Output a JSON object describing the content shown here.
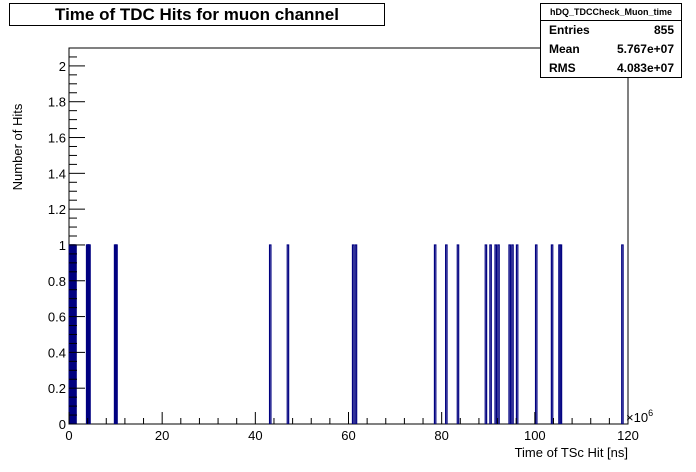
{
  "chart_data": {
    "type": "bar",
    "title": "Time of TDC Hits for muon channel",
    "xlabel": "Time of TSc Hit [ns]",
    "ylabel": "Number of Hits",
    "x_multiplier_label": "×10",
    "x_multiplier_exp": "6",
    "xlim": [
      0,
      120
    ],
    "ylim": [
      0,
      2.1
    ],
    "x_ticks": [
      0,
      20,
      40,
      60,
      80,
      100,
      120
    ],
    "x_tick_labels": [
      "0",
      "20",
      "40",
      "60",
      "80",
      "100",
      "120"
    ],
    "y_ticks": [
      0,
      0.2,
      0.4,
      0.6,
      0.8,
      1,
      1.2,
      1.4,
      1.6,
      1.8,
      2
    ],
    "y_tick_labels": [
      "0",
      "0.2",
      "0.4",
      "0.6",
      "0.8",
      "1",
      "1.2",
      "1.4",
      "1.6",
      "1.8",
      "2"
    ],
    "bar_color": "#000080",
    "bins_x": [
      0.2,
      0.35,
      0.5,
      0.65,
      0.8,
      0.95,
      1.1,
      1.25,
      1.4,
      3.9,
      4.0,
      4.1,
      4.2,
      4.3,
      4.4,
      9.9,
      10.05,
      10.2,
      43.2,
      47.0,
      61.0,
      61.6,
      78.6,
      81.0,
      83.5,
      89.5,
      90.5,
      91.6,
      92.2,
      94.6,
      95.2,
      96.2,
      100.3,
      103.7,
      105.3,
      105.6,
      118.8
    ],
    "bins_y": [
      1,
      1,
      1,
      1,
      1,
      1,
      1,
      1,
      1,
      1,
      1,
      1,
      1,
      1,
      1,
      1,
      1,
      1,
      1,
      1,
      1,
      1,
      1,
      1,
      1,
      1,
      1,
      1,
      1,
      1,
      1,
      1,
      1,
      1,
      1,
      1,
      1
    ]
  },
  "stats": {
    "name": "hDQ_TDCCheck_Muon_time",
    "rows": [
      {
        "label": "Entries",
        "value": "855"
      },
      {
        "label": "Mean",
        "value": "5.767e+07"
      },
      {
        "label": "RMS",
        "value": "4.083e+07"
      }
    ]
  }
}
